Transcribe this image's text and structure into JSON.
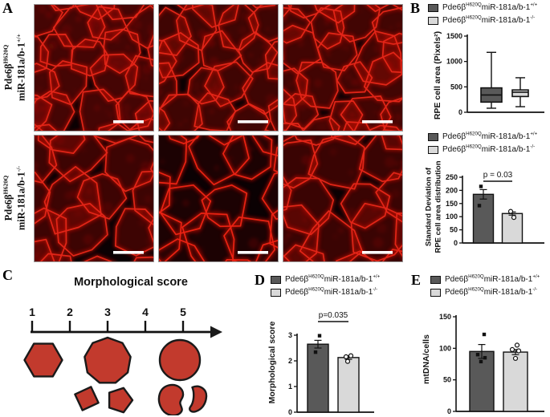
{
  "legend": {
    "gene": "Pde6β",
    "gene_sup": "H620Q",
    "mir": "miR-181a/b-1",
    "wt_sup": "+/+",
    "ko_sup": "-/-",
    "wt_color": "#595959",
    "ko_color": "#d9d9d9"
  },
  "panels": {
    "a": {
      "label": "A",
      "rows": [
        {
          "gene": "Pde6β",
          "gene_sup": "H620Q",
          "mir": "miR-181a/b-1",
          "mir_sup": "+/+"
        },
        {
          "gene": "Pde6β",
          "gene_sup": "H620Q",
          "mir": "miR-181a/b-1",
          "mir_sup": "-/-"
        }
      ],
      "micrographs_per_row": 3,
      "stain_color": "#e8271a",
      "scale_bar_color": "#ffffff"
    },
    "b": {
      "label": "B"
    },
    "c": {
      "label": "C",
      "title": "Morphological score",
      "scale_ticks": [
        "1",
        "2",
        "3",
        "4",
        "5"
      ],
      "shape_color": "#c23a2d",
      "shape_outline": "#1a1a1a",
      "shapes": [
        {
          "name": "hexagon",
          "score": 1
        },
        {
          "name": "nonagon",
          "score": 3
        },
        {
          "name": "rotated-square",
          "score": 3
        },
        {
          "name": "pentagon",
          "score": 3
        },
        {
          "name": "circle",
          "score": 5
        },
        {
          "name": "irregular-blob",
          "score": 5
        },
        {
          "name": "small-blob",
          "score": 5
        }
      ]
    },
    "d": {
      "label": "D"
    },
    "e": {
      "label": "E"
    }
  },
  "chart_data": {
    "rpe_box": {
      "type": "box",
      "ylabel": "RPE cell area (Pixels²)",
      "ylim": [
        0,
        1500
      ],
      "yticks": [
        0,
        500,
        1000,
        1500
      ],
      "series": [
        {
          "name": "Pde6βH620Q miR-181a/b-1+/+",
          "color": "#595959",
          "min": 80,
          "q1": 200,
          "median": 340,
          "q3": 480,
          "max": 1180
        },
        {
          "name": "Pde6βH620Q miR-181a/b-1-/-",
          "color": "#d9d9d9",
          "min": 110,
          "q1": 310,
          "median": 395,
          "q3": 440,
          "max": 680
        }
      ]
    },
    "sd_bar": {
      "type": "bar",
      "ylabel": "Standard Deviation of RPE cell area distribution",
      "ylabel_lines": [
        "Standard Deviation of",
        "RPE cell area distribution"
      ],
      "ylim": [
        0,
        250
      ],
      "yticks": [
        0,
        50,
        100,
        150,
        200,
        250
      ],
      "p_label": "p = 0.03",
      "series": [
        {
          "name": "Pde6βH620Q miR-181a/b-1+/+",
          "color": "#595959",
          "marker": "filled-square",
          "value": 185,
          "error": 18,
          "points": [
            215,
            142
          ]
        },
        {
          "name": "Pde6βH620Q miR-181a/b-1-/-",
          "color": "#d9d9d9",
          "marker": "open-circle",
          "value": 112,
          "error": 6,
          "points": [
            120,
            97
          ]
        }
      ]
    },
    "morph_bar": {
      "type": "bar",
      "ylabel": "Morphological score",
      "ylim": [
        0,
        3
      ],
      "yticks": [
        0,
        1,
        2,
        3
      ],
      "p_label": "p=0.035",
      "series": [
        {
          "name": "Pde6βH620Q miR-181a/b-1+/+",
          "color": "#595959",
          "marker": "filled-square",
          "value": 2.65,
          "error": 0.15,
          "points": [
            2.98,
            2.34
          ]
        },
        {
          "name": "Pde6βH620Q miR-181a/b-1-/-",
          "color": "#d9d9d9",
          "marker": "open-circle",
          "value": 2.13,
          "error": 0.07,
          "points": [
            2.2,
            2.16,
            1.98
          ]
        }
      ]
    },
    "mtdna_bar": {
      "type": "bar",
      "ylabel": "mtDNA/cells",
      "ylim": [
        0,
        150
      ],
      "yticks": [
        0,
        50,
        100,
        150
      ],
      "p_label": null,
      "series": [
        {
          "name": "Pde6βH620Q miR-181a/b-1+/+",
          "color": "#595959",
          "marker": "filled-square",
          "value": 95,
          "error": 11,
          "points": [
            122,
            90,
            85,
            79
          ]
        },
        {
          "name": "Pde6βH620Q miR-181a/b-1-/-",
          "color": "#d9d9d9",
          "marker": "open-circle",
          "value": 94,
          "error": 4,
          "points": [
            105,
            98,
            96,
            84
          ]
        }
      ]
    }
  }
}
